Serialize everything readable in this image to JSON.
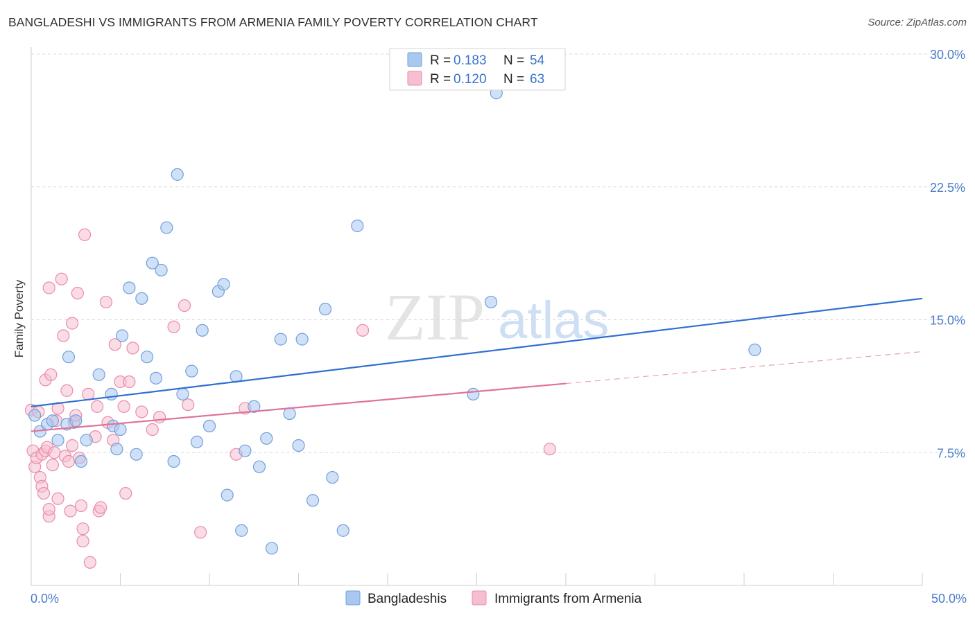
{
  "title": "BANGLADESHI VS IMMIGRANTS FROM ARMENIA FAMILY POVERTY CORRELATION CHART",
  "source": "Source: ZipAtlas.com",
  "watermark": {
    "zip": "ZIP",
    "atlas": "atlas"
  },
  "colors": {
    "blue_fill": "#a9c8f0",
    "blue_stroke": "#6f9fdc",
    "blue_line": "#2f6fcf",
    "pink_fill": "#f6bfd0",
    "pink_stroke": "#e98bab",
    "pink_line": "#e07399",
    "grid": "#d9d9d9",
    "axis_label": "#4a7cc9"
  },
  "legend": {
    "r_label": "R =",
    "n_label": "N =",
    "series": [
      {
        "r": "0.183",
        "n": "54"
      },
      {
        "r": "0.120",
        "n": "63"
      }
    ]
  },
  "bottom_legend": [
    "Bangladeshis",
    "Immigrants from Armenia"
  ],
  "chart_data": {
    "type": "scatter",
    "title": "BANGLADESHI VS IMMIGRANTS FROM ARMENIA FAMILY POVERTY CORRELATION CHART",
    "xlabel": "",
    "ylabel": "Family Poverty",
    "xlim": [
      0,
      50
    ],
    "ylim": [
      0,
      30
    ],
    "x_tick_labels": [
      "0.0%",
      "50.0%"
    ],
    "y_ticks": [
      7.5,
      15.0,
      22.5,
      30.0
    ],
    "y_tick_labels": [
      "7.5%",
      "15.0%",
      "22.5%",
      "30.0%"
    ],
    "grid": true,
    "legend_position": "top-center",
    "series": [
      {
        "name": "Bangladeshis",
        "r": 0.183,
        "n": 54,
        "trend": {
          "x": [
            0,
            50
          ],
          "y": [
            10.1,
            16.2
          ]
        },
        "points": [
          [
            0.2,
            9.6
          ],
          [
            0.5,
            8.7
          ],
          [
            0.9,
            9.1
          ],
          [
            1.2,
            9.3
          ],
          [
            1.5,
            8.2
          ],
          [
            2.0,
            9.1
          ],
          [
            2.1,
            12.9
          ],
          [
            2.5,
            9.3
          ],
          [
            2.8,
            7.0
          ],
          [
            3.1,
            8.2
          ],
          [
            3.8,
            11.9
          ],
          [
            4.5,
            10.8
          ],
          [
            4.6,
            9.0
          ],
          [
            4.8,
            7.7
          ],
          [
            5.0,
            8.8
          ],
          [
            5.1,
            14.1
          ],
          [
            5.5,
            16.8
          ],
          [
            5.9,
            7.4
          ],
          [
            6.2,
            16.2
          ],
          [
            6.5,
            12.9
          ],
          [
            6.8,
            18.2
          ],
          [
            7.0,
            11.7
          ],
          [
            7.3,
            17.8
          ],
          [
            7.6,
            20.2
          ],
          [
            8.0,
            7.0
          ],
          [
            8.2,
            23.2
          ],
          [
            8.5,
            10.8
          ],
          [
            9.0,
            12.1
          ],
          [
            9.3,
            8.1
          ],
          [
            9.6,
            14.4
          ],
          [
            10.0,
            9.0
          ],
          [
            10.5,
            16.6
          ],
          [
            10.8,
            17.0
          ],
          [
            11.0,
            5.1
          ],
          [
            11.5,
            11.8
          ],
          [
            11.8,
            3.1
          ],
          [
            12.0,
            7.6
          ],
          [
            12.5,
            10.1
          ],
          [
            12.8,
            6.7
          ],
          [
            13.2,
            8.3
          ],
          [
            13.5,
            2.1
          ],
          [
            14.0,
            13.9
          ],
          [
            14.5,
            9.7
          ],
          [
            15.0,
            7.9
          ],
          [
            15.2,
            13.9
          ],
          [
            15.8,
            4.8
          ],
          [
            16.5,
            15.6
          ],
          [
            16.9,
            6.1
          ],
          [
            17.5,
            3.1
          ],
          [
            18.3,
            20.3
          ],
          [
            24.8,
            10.8
          ],
          [
            25.8,
            16.0
          ],
          [
            26.1,
            27.8
          ],
          [
            40.6,
            13.3
          ]
        ]
      },
      {
        "name": "Immigrants from Armenia",
        "r": 0.12,
        "n": 63,
        "trend": {
          "x": [
            0,
            30
          ],
          "y": [
            8.7,
            11.4
          ]
        },
        "trend_dashed": {
          "x": [
            30,
            50
          ],
          "y": [
            11.4,
            13.2
          ]
        },
        "points": [
          [
            0.0,
            9.9
          ],
          [
            0.1,
            7.6
          ],
          [
            0.2,
            6.7
          ],
          [
            0.3,
            7.2
          ],
          [
            0.4,
            9.8
          ],
          [
            0.5,
            6.1
          ],
          [
            0.6,
            5.6
          ],
          [
            0.6,
            7.4
          ],
          [
            0.7,
            5.2
          ],
          [
            0.8,
            7.6
          ],
          [
            0.8,
            11.6
          ],
          [
            0.9,
            7.8
          ],
          [
            1.0,
            3.9
          ],
          [
            1.0,
            4.3
          ],
          [
            1.0,
            16.8
          ],
          [
            1.1,
            11.9
          ],
          [
            1.2,
            6.8
          ],
          [
            1.3,
            7.5
          ],
          [
            1.4,
            9.3
          ],
          [
            1.5,
            4.9
          ],
          [
            1.5,
            10.0
          ],
          [
            1.7,
            17.3
          ],
          [
            1.8,
            14.1
          ],
          [
            1.9,
            7.3
          ],
          [
            2.0,
            11.0
          ],
          [
            2.1,
            7.0
          ],
          [
            2.2,
            4.2
          ],
          [
            2.3,
            14.8
          ],
          [
            2.3,
            7.9
          ],
          [
            2.4,
            9.2
          ],
          [
            2.5,
            9.6
          ],
          [
            2.6,
            16.5
          ],
          [
            2.7,
            7.2
          ],
          [
            2.8,
            4.5
          ],
          [
            2.9,
            3.2
          ],
          [
            2.9,
            2.5
          ],
          [
            3.0,
            19.8
          ],
          [
            3.2,
            10.8
          ],
          [
            3.3,
            1.3
          ],
          [
            3.6,
            8.4
          ],
          [
            3.7,
            10.1
          ],
          [
            3.8,
            4.2
          ],
          [
            3.9,
            4.4
          ],
          [
            4.2,
            16.0
          ],
          [
            4.3,
            9.2
          ],
          [
            4.6,
            8.2
          ],
          [
            4.7,
            13.6
          ],
          [
            5.0,
            11.5
          ],
          [
            5.2,
            10.1
          ],
          [
            5.3,
            5.2
          ],
          [
            5.5,
            11.5
          ],
          [
            5.7,
            13.4
          ],
          [
            6.2,
            9.8
          ],
          [
            6.8,
            8.8
          ],
          [
            7.2,
            9.5
          ],
          [
            8.0,
            14.6
          ],
          [
            8.6,
            15.8
          ],
          [
            8.8,
            10.2
          ],
          [
            9.5,
            3.0
          ],
          [
            11.5,
            7.4
          ],
          [
            12.0,
            10.0
          ],
          [
            18.6,
            14.4
          ],
          [
            29.1,
            7.7
          ]
        ]
      }
    ]
  }
}
